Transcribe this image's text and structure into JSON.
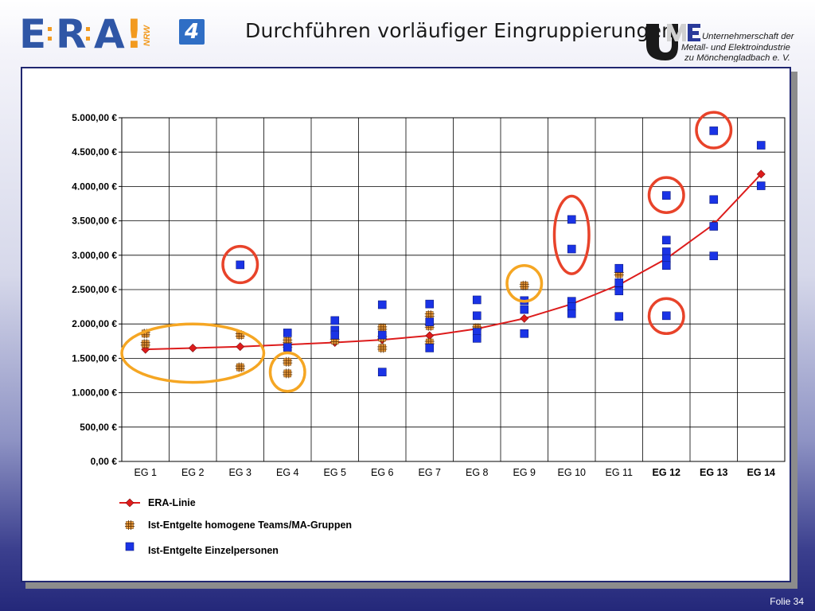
{
  "header": {
    "logo_letters": [
      "E",
      "R",
      "A"
    ],
    "logo_exclaim": "!",
    "logo_tag": "NRW",
    "slide_number": "4",
    "title": "Durchführen vorläufiger Eingruppierungen",
    "ume_logo": {
      "mark": "UME",
      "lines": [
        "Unternehmerschaft der",
        "Metall- und Elektroindustrie",
        "zu Mönchengladbach e. V."
      ]
    }
  },
  "footer": {
    "label": "Folie 34"
  },
  "colors": {
    "era_blue": "#2f56a6",
    "accent_orange": "#f29a1f",
    "line_red": "#dd1c1c",
    "marker_blue": "#1a33e6",
    "marker_orange": "#f0a040",
    "circle_red": "#e8432a",
    "circle_orange": "#f5a623",
    "frame_border": "#1f2670"
  },
  "chart_data": {
    "type": "scatter",
    "title": "",
    "xlabel": "",
    "ylabel": "",
    "categories": [
      "EG 1",
      "EG 2",
      "EG 3",
      "EG 4",
      "EG 5",
      "EG 6",
      "EG 7",
      "EG 8",
      "EG 9",
      "EG 10",
      "EG 11",
      "EG 12",
      "EG 13",
      "EG 14"
    ],
    "bold_categories": [
      "EG 12",
      "EG 13",
      "EG 14"
    ],
    "y_ticks": [
      0,
      500,
      1000,
      1500,
      2000,
      2500,
      3000,
      3500,
      4000,
      4500,
      5000
    ],
    "y_tick_labels": [
      "0,00 €",
      "500,00 €",
      "1.000,00 €",
      "1.500,00 €",
      "2.000,00 €",
      "2.500,00 €",
      "3.000,00 €",
      "3.500,00 €",
      "4.000,00 €",
      "4.500,00 €",
      "5.000,00 €"
    ],
    "ylim": [
      0,
      5000
    ],
    "grid": true,
    "legend_position": "bottom-left",
    "series": [
      {
        "name": "ERA-Linie",
        "kind": "line",
        "color": "#dd1c1c",
        "marker": "diamond",
        "points": [
          {
            "cat": "EG 1",
            "y": 1630
          },
          {
            "cat": "EG 2",
            "y": 1650
          },
          {
            "cat": "EG 3",
            "y": 1670
          },
          {
            "cat": "EG 4",
            "y": 1700
          },
          {
            "cat": "EG 5",
            "y": 1730
          },
          {
            "cat": "EG 6",
            "y": 1770
          },
          {
            "cat": "EG 7",
            "y": 1830
          },
          {
            "cat": "EG 8",
            "y": 1930
          },
          {
            "cat": "EG 9",
            "y": 2080
          },
          {
            "cat": "EG 10",
            "y": 2290
          },
          {
            "cat": "EG 11",
            "y": 2570
          },
          {
            "cat": "EG 12",
            "y": 2950
          },
          {
            "cat": "EG 13",
            "y": 3450
          },
          {
            "cat": "EG 14",
            "y": 4180
          }
        ]
      },
      {
        "name": "Ist-Entgelte homogene Teams/MA-Gruppen",
        "kind": "scatter",
        "color": "#f0a040",
        "marker": "hash-square",
        "points": [
          {
            "cat": "EG 1",
            "y": 1860
          },
          {
            "cat": "EG 1",
            "y": 1710
          },
          {
            "cat": "EG 3",
            "y": 1840
          },
          {
            "cat": "EG 3",
            "y": 1370
          },
          {
            "cat": "EG 4",
            "y": 1750
          },
          {
            "cat": "EG 4",
            "y": 1680
          },
          {
            "cat": "EG 4",
            "y": 1450
          },
          {
            "cat": "EG 4",
            "y": 1280
          },
          {
            "cat": "EG 5",
            "y": 1760
          },
          {
            "cat": "EG 6",
            "y": 1940
          },
          {
            "cat": "EG 6",
            "y": 1800
          },
          {
            "cat": "EG 6",
            "y": 1650
          },
          {
            "cat": "EG 7",
            "y": 2130
          },
          {
            "cat": "EG 7",
            "y": 1970
          },
          {
            "cat": "EG 7",
            "y": 1730
          },
          {
            "cat": "EG 8",
            "y": 1940
          },
          {
            "cat": "EG 9",
            "y": 2560
          },
          {
            "cat": "EG 11",
            "y": 2730
          }
        ]
      },
      {
        "name": "Ist-Entgelte Einzelpersonen",
        "kind": "scatter",
        "color": "#1a33e6",
        "marker": "square",
        "points": [
          {
            "cat": "EG 3",
            "y": 2860
          },
          {
            "cat": "EG 4",
            "y": 1870
          },
          {
            "cat": "EG 4",
            "y": 1660
          },
          {
            "cat": "EG 5",
            "y": 2050
          },
          {
            "cat": "EG 5",
            "y": 1910
          },
          {
            "cat": "EG 5",
            "y": 1840
          },
          {
            "cat": "EG 6",
            "y": 2280
          },
          {
            "cat": "EG 6",
            "y": 1840
          },
          {
            "cat": "EG 6",
            "y": 1300
          },
          {
            "cat": "EG 7",
            "y": 2290
          },
          {
            "cat": "EG 7",
            "y": 2030
          },
          {
            "cat": "EG 7",
            "y": 1650
          },
          {
            "cat": "EG 8",
            "y": 2350
          },
          {
            "cat": "EG 8",
            "y": 2120
          },
          {
            "cat": "EG 8",
            "y": 1880
          },
          {
            "cat": "EG 8",
            "y": 1790
          },
          {
            "cat": "EG 9",
            "y": 2340
          },
          {
            "cat": "EG 9",
            "y": 2210
          },
          {
            "cat": "EG 9",
            "y": 1860
          },
          {
            "cat": "EG 10",
            "y": 3520
          },
          {
            "cat": "EG 10",
            "y": 3090
          },
          {
            "cat": "EG 10",
            "y": 2330
          },
          {
            "cat": "EG 10",
            "y": 2250
          },
          {
            "cat": "EG 10",
            "y": 2150
          },
          {
            "cat": "EG 11",
            "y": 2810
          },
          {
            "cat": "EG 11",
            "y": 2600
          },
          {
            "cat": "EG 11",
            "y": 2480
          },
          {
            "cat": "EG 11",
            "y": 2110
          },
          {
            "cat": "EG 12",
            "y": 3870
          },
          {
            "cat": "EG 12",
            "y": 3220
          },
          {
            "cat": "EG 12",
            "y": 3050
          },
          {
            "cat": "EG 12",
            "y": 2950
          },
          {
            "cat": "EG 12",
            "y": 2850
          },
          {
            "cat": "EG 12",
            "y": 2120
          },
          {
            "cat": "EG 13",
            "y": 4810
          },
          {
            "cat": "EG 13",
            "y": 3810
          },
          {
            "cat": "EG 13",
            "y": 3420
          },
          {
            "cat": "EG 13",
            "y": 2990
          },
          {
            "cat": "EG 14",
            "y": 4600
          },
          {
            "cat": "EG 14",
            "y": 4010
          }
        ]
      }
    ],
    "annotations": [
      {
        "shape": "ellipse",
        "color": "#f5a623",
        "cat_from": "EG 1",
        "cat_to": "EG 3",
        "y_from": 1150,
        "y_to": 2000
      },
      {
        "shape": "ellipse",
        "color": "#f5a623",
        "cat_from": "EG 4",
        "cat_to": "EG 4",
        "y_from": 1020,
        "y_to": 1580
      },
      {
        "shape": "ellipse",
        "color": "#f5a623",
        "cat_from": "EG 9",
        "cat_to": "EG 9",
        "y_from": 2330,
        "y_to": 2850
      },
      {
        "shape": "ellipse",
        "color": "#e8432a",
        "cat_from": "EG 3",
        "cat_to": "EG 3",
        "y_from": 2600,
        "y_to": 3130
      },
      {
        "shape": "ellipse",
        "color": "#e8432a",
        "cat_from": "EG 10",
        "cat_to": "EG 10",
        "y_from": 2730,
        "y_to": 3860
      },
      {
        "shape": "ellipse",
        "color": "#e8432a",
        "cat_from": "EG 12",
        "cat_to": "EG 12",
        "y_from": 3620,
        "y_to": 4130
      },
      {
        "shape": "ellipse",
        "color": "#e8432a",
        "cat_from": "EG 12",
        "cat_to": "EG 12",
        "y_from": 1860,
        "y_to": 2370
      },
      {
        "shape": "ellipse",
        "color": "#e8432a",
        "cat_from": "EG 13",
        "cat_to": "EG 13",
        "y_from": 4560,
        "y_to": 5080
      }
    ]
  }
}
